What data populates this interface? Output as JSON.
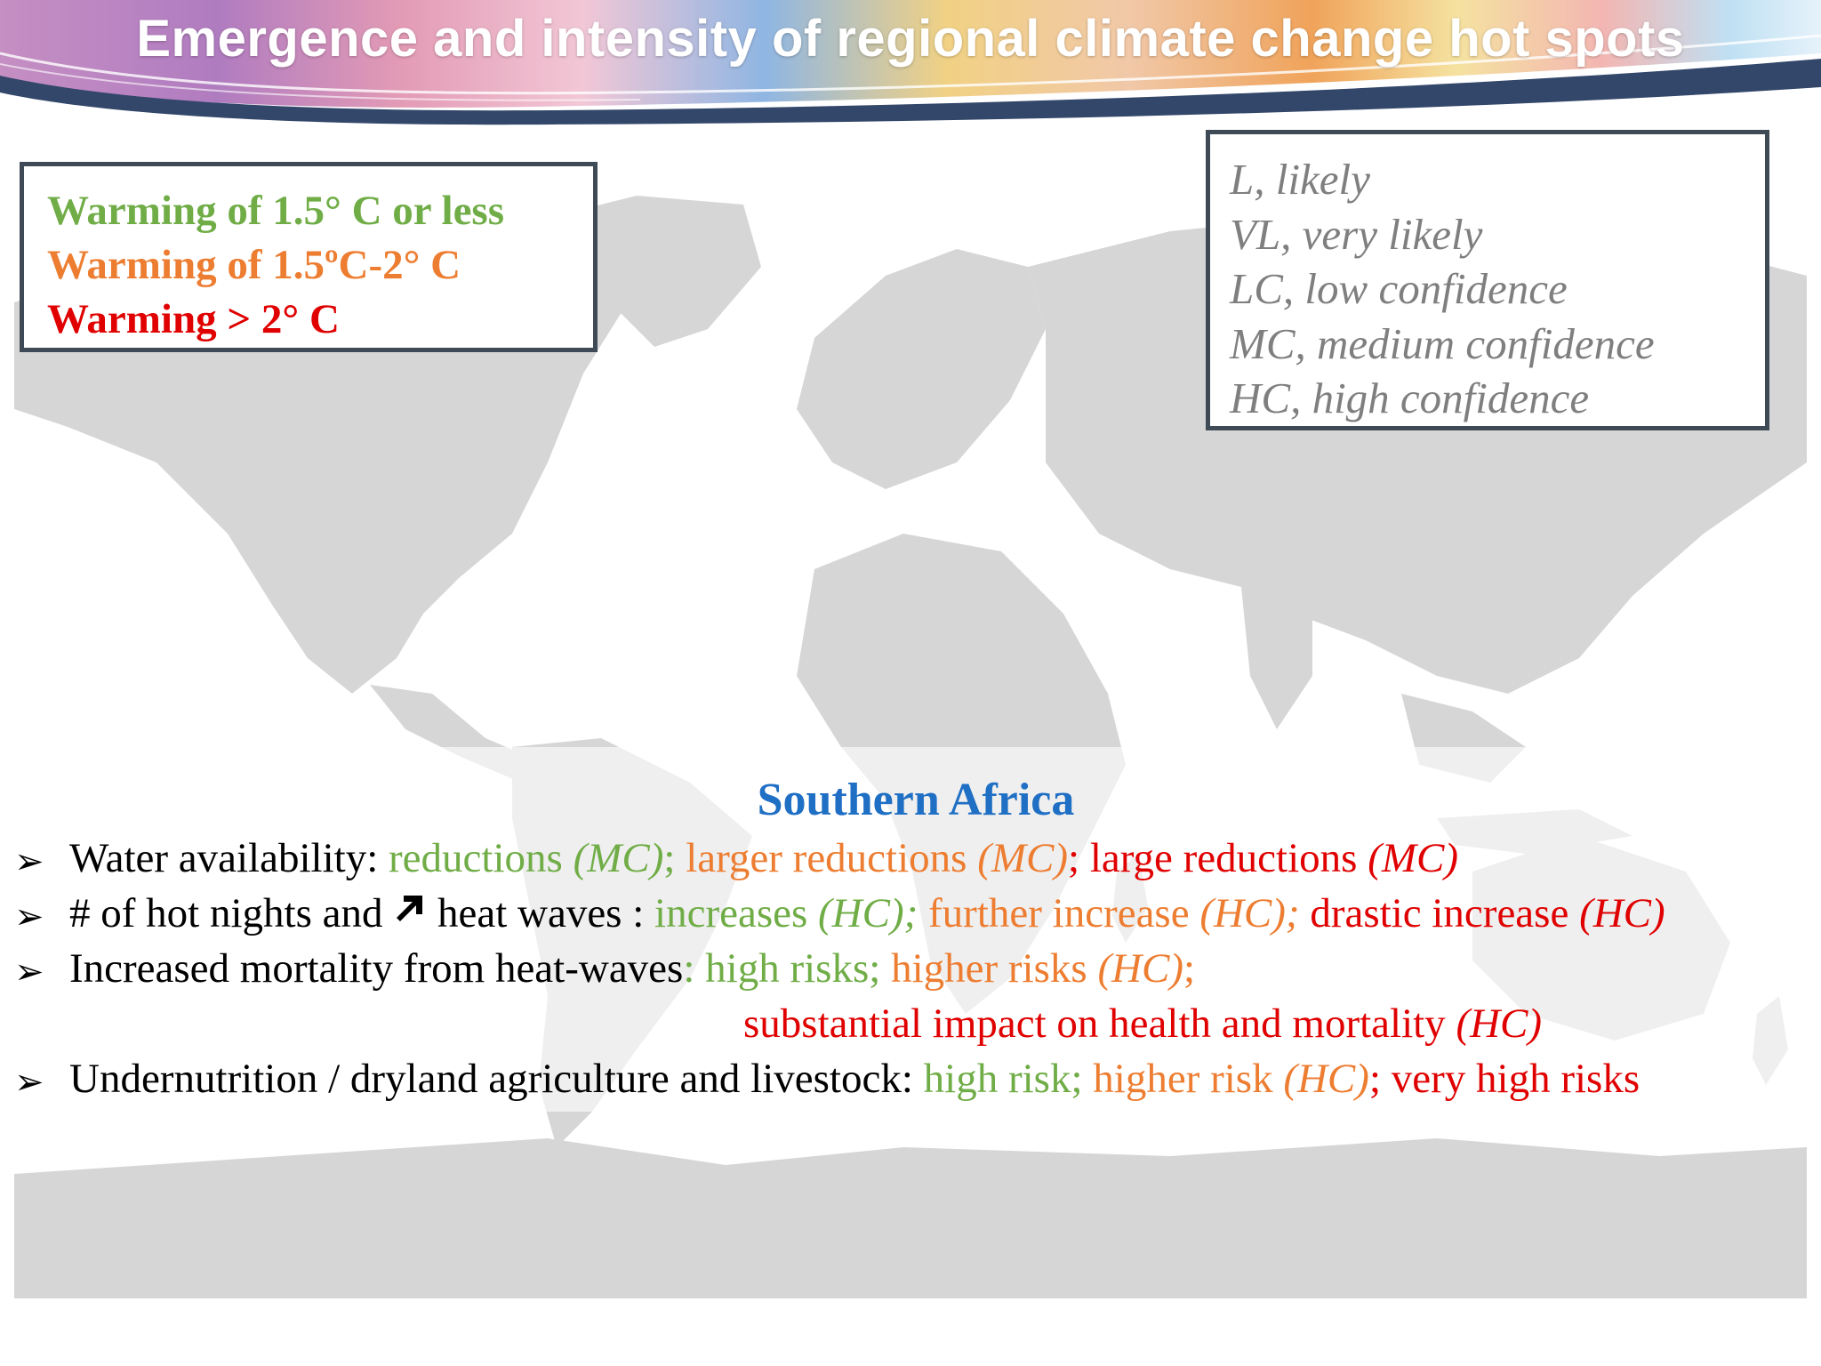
{
  "slide": {
    "title": "Emergence and intensity of regional climate change hot spots"
  },
  "colors": {
    "green": "#70ad47",
    "orange": "#ed7d31",
    "red": "#e00000",
    "blue": "#1f6fc4",
    "gray_text": "#7f7f7f",
    "box_border": "#3f4a57",
    "map_land": "#d6d6d6"
  },
  "warming_legend": [
    "Warming of 1.5° C or less",
    "Warming of 1.5ºC-2° C",
    "Warming > 2° C"
  ],
  "confidence_legend": [
    "L, likely",
    "VL, very likely",
    "LC, low confidence",
    "MC, medium confidence",
    "HC, high confidence"
  ],
  "region": {
    "title": "Southern Africa",
    "bullet_icon": "arrow-bullet-icon",
    "items": [
      {
        "label": "Water availability:",
        "green": " reductions ",
        "green_conf": "(MC)",
        "green_sep": "; ",
        "orange": "larger reductions ",
        "orange_conf": "(MC)",
        "orange_sep": "; ",
        "red": "large reductions ",
        "red_conf": "(MC)"
      },
      {
        "label_a": "# of hot nights and ",
        "icon": "up-right-arrow-icon",
        "label_b": " heat waves : ",
        "green": "increases ",
        "green_conf": "(HC);",
        "orange": " further increase ",
        "orange_conf": "(HC);",
        "red": " drastic increase ",
        "red_conf": "(HC)"
      },
      {
        "label": "Increased mortality from heat-waves",
        "green": ": high risks; ",
        "orange": "higher risks ",
        "orange_conf": "(HC)",
        "orange_sep": ";",
        "red": "substantial impact on health and mortality ",
        "red_conf": "(HC)"
      },
      {
        "label": "Undernutrition / dryland agriculture and livestock:",
        "green": " high risk; ",
        "orange": "higher risk ",
        "orange_conf": "(HC)",
        "orange_sep": "; ",
        "red": "very high risks"
      }
    ]
  }
}
